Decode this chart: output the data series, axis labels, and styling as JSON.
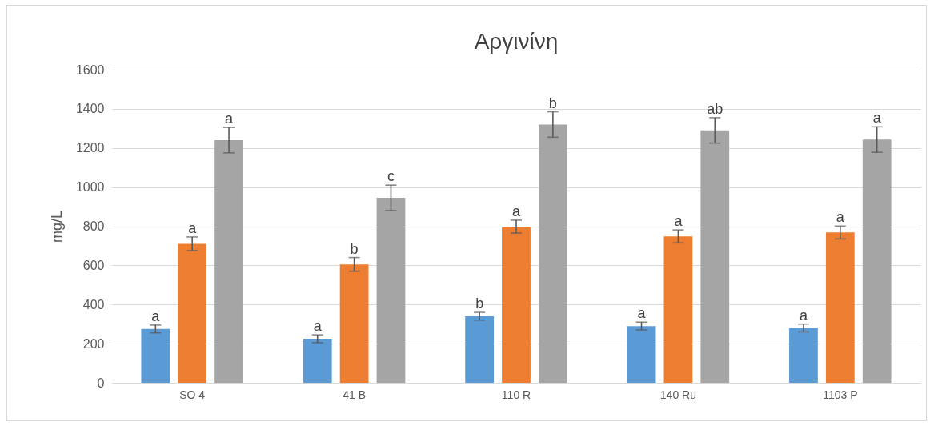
{
  "chart_data": {
    "type": "bar",
    "title": "Αργινίνη",
    "ylabel": "mg/L",
    "categories": [
      "SO 4",
      "41 B",
      "110 R",
      "140 Ru",
      "1103 P"
    ],
    "series": [
      {
        "color": "#5b9bd5",
        "values": [
          275,
          225,
          340,
          290,
          280
        ],
        "errors": [
          20,
          20,
          20,
          20,
          20
        ],
        "value_labels": [
          "a",
          "a",
          "b",
          "a",
          "a"
        ]
      },
      {
        "color": "#ed7d31",
        "values": [
          710,
          605,
          798,
          748,
          768
        ],
        "errors": [
          35,
          35,
          33,
          33,
          33
        ],
        "value_labels": [
          "a",
          "b",
          "a",
          "a",
          "a"
        ]
      },
      {
        "color": "#a5a5a5",
        "values": [
          1240,
          945,
          1320,
          1290,
          1243
        ],
        "errors": [
          65,
          65,
          65,
          65,
          65
        ],
        "value_labels": [
          "a",
          "c",
          "b",
          "ab",
          "a"
        ]
      }
    ],
    "ylim": [
      0,
      1600
    ],
    "yticks": [
      0,
      200,
      400,
      600,
      800,
      1000,
      1200,
      1400,
      1600
    ],
    "grid": "y"
  }
}
